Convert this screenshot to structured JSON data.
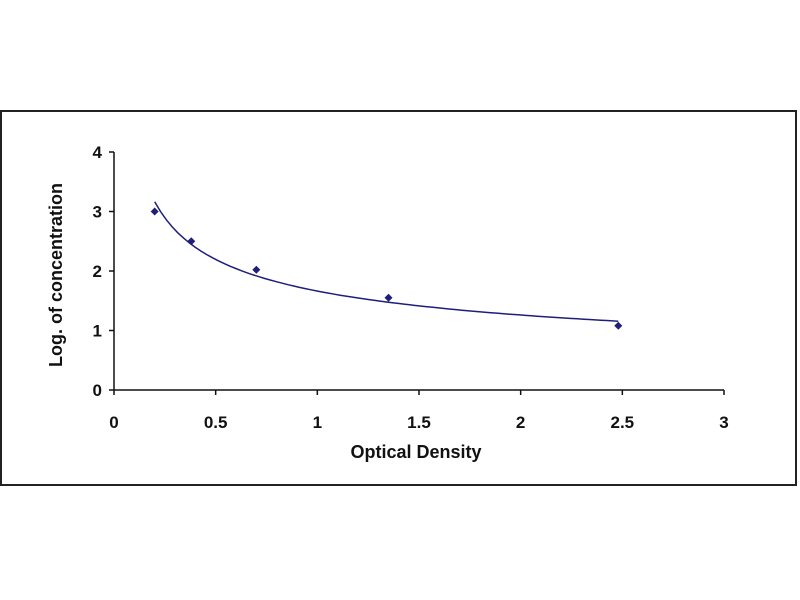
{
  "chart_data": {
    "type": "scatter",
    "title": "",
    "xlabel": "Optical Density",
    "ylabel": "Log. of concentration",
    "xlim": [
      0,
      3
    ],
    "ylim": [
      0,
      4
    ],
    "x_ticks": [
      "0",
      "0.5",
      "1",
      "1.5",
      "2",
      "2.5",
      "3"
    ],
    "y_ticks": [
      "0",
      "1",
      "2",
      "3",
      "4"
    ],
    "grid": false,
    "legend": "none",
    "trendline": "power",
    "series": [
      {
        "x": [
          0.2,
          0.38,
          0.7,
          1.35,
          2.48
        ],
        "y": [
          3.0,
          2.5,
          2.02,
          1.55,
          1.08
        ]
      }
    ],
    "colors": {
      "marker": "#1f1f7a",
      "curve": "#1f1f7a",
      "axis": "#111111"
    }
  }
}
